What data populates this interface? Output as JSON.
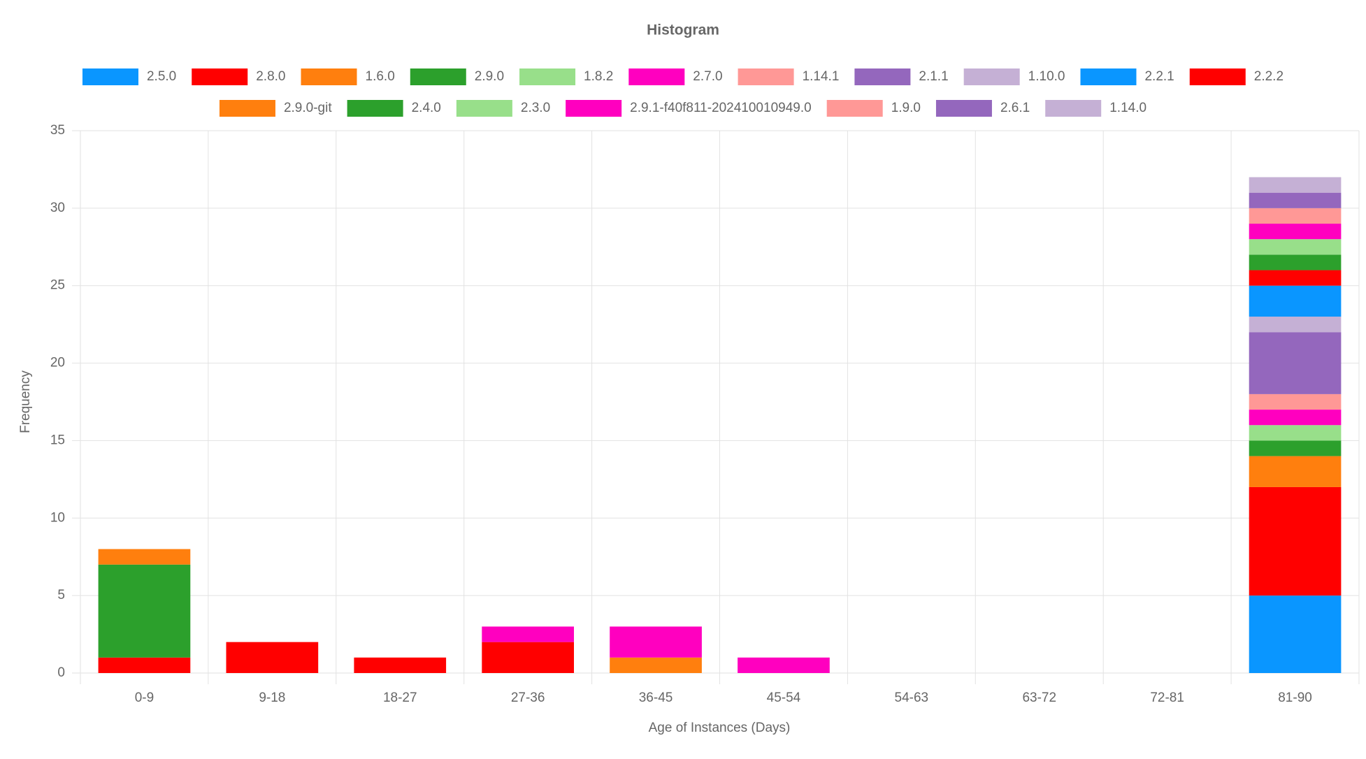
{
  "chart_data": {
    "type": "bar",
    "stacked": true,
    "title": "Histogram",
    "x_label": "Age of Instances (Days)",
    "y_label": "Frequency",
    "categories": [
      "0-9",
      "9-18",
      "18-27",
      "27-36",
      "36-45",
      "45-54",
      "54-63",
      "63-72",
      "72-81",
      "81-90"
    ],
    "ylim": [
      0,
      35
    ],
    "yticks": [
      0,
      5,
      10,
      15,
      20,
      25,
      30,
      35
    ],
    "grid": true,
    "legend": "top",
    "series": [
      {
        "name": "2.5.0",
        "color": "#0a96ff",
        "values": [
          0,
          0,
          0,
          0,
          0,
          0,
          0,
          0,
          0,
          5
        ]
      },
      {
        "name": "2.8.0",
        "color": "#ff0000",
        "values": [
          1,
          2,
          1,
          2,
          0,
          0,
          0,
          0,
          0,
          7
        ]
      },
      {
        "name": "1.6.0",
        "color": "#ff7f0e",
        "values": [
          0,
          0,
          0,
          0,
          1,
          0,
          0,
          0,
          0,
          2
        ]
      },
      {
        "name": "2.9.0",
        "color": "#2ca02c",
        "values": [
          6,
          0,
          0,
          0,
          0,
          0,
          0,
          0,
          0,
          1
        ]
      },
      {
        "name": "1.8.2",
        "color": "#98df8a",
        "values": [
          0,
          0,
          0,
          0,
          0,
          0,
          0,
          0,
          0,
          1
        ]
      },
      {
        "name": "2.7.0",
        "color": "#ff00bf",
        "values": [
          0,
          0,
          0,
          1,
          2,
          1,
          0,
          0,
          0,
          1
        ]
      },
      {
        "name": "1.14.1",
        "color": "#ff9896",
        "values": [
          0,
          0,
          0,
          0,
          0,
          0,
          0,
          0,
          0,
          1
        ]
      },
      {
        "name": "2.1.1",
        "color": "#9467bd",
        "values": [
          0,
          0,
          0,
          0,
          0,
          0,
          0,
          0,
          0,
          4
        ]
      },
      {
        "name": "1.10.0",
        "color": "#c5b0d5",
        "values": [
          0,
          0,
          0,
          0,
          0,
          0,
          0,
          0,
          0,
          1
        ]
      },
      {
        "name": "2.2.1",
        "color": "#0a96ff",
        "values": [
          0,
          0,
          0,
          0,
          0,
          0,
          0,
          0,
          0,
          2
        ]
      },
      {
        "name": "2.2.2",
        "color": "#ff0000",
        "values": [
          0,
          0,
          0,
          0,
          0,
          0,
          0,
          0,
          0,
          1
        ]
      },
      {
        "name": "2.9.0-git",
        "color": "#ff7f0e",
        "values": [
          1,
          0,
          0,
          0,
          0,
          0,
          0,
          0,
          0,
          0
        ]
      },
      {
        "name": "2.4.0",
        "color": "#2ca02c",
        "values": [
          0,
          0,
          0,
          0,
          0,
          0,
          0,
          0,
          0,
          1
        ]
      },
      {
        "name": "2.3.0",
        "color": "#98df8a",
        "values": [
          0,
          0,
          0,
          0,
          0,
          0,
          0,
          0,
          0,
          1
        ]
      },
      {
        "name": "2.9.1-f40f811-202410010949.0",
        "color": "#ff00bf",
        "values": [
          0,
          0,
          0,
          0,
          0,
          0,
          0,
          0,
          0,
          1
        ]
      },
      {
        "name": "1.9.0",
        "color": "#ff9896",
        "values": [
          0,
          0,
          0,
          0,
          0,
          0,
          0,
          0,
          0,
          1
        ]
      },
      {
        "name": "2.6.1",
        "color": "#9467bd",
        "values": [
          0,
          0,
          0,
          0,
          0,
          0,
          0,
          0,
          0,
          1
        ]
      },
      {
        "name": "1.14.0",
        "color": "#c5b0d5",
        "values": [
          0,
          0,
          0,
          0,
          0,
          0,
          0,
          0,
          0,
          1
        ]
      }
    ]
  }
}
